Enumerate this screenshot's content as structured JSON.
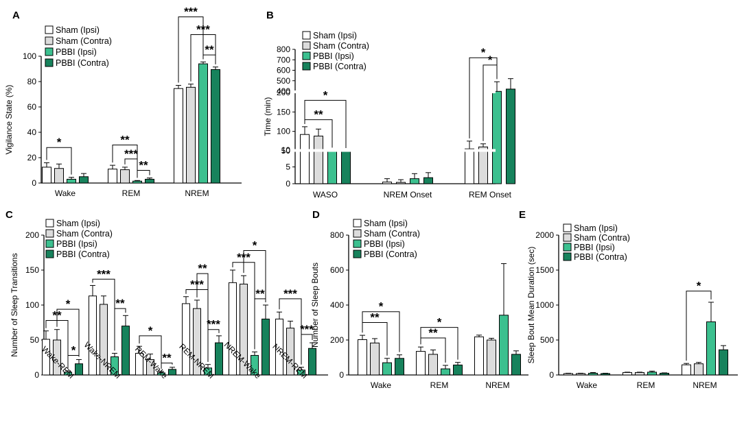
{
  "figure": {
    "series_names": [
      "Sham (Ipsi)",
      "Sham (Contra)",
      "PBBI (Ipsi)",
      "PBBI (Contra)"
    ],
    "series_colors": [
      "#ffffff",
      "#dcdcdc",
      "#3cc08f",
      "#17825c"
    ]
  },
  "chart_data": [
    {
      "id": "A",
      "type": "bar",
      "ylabel": "Vigilance State (%)",
      "ylim": [
        0,
        100
      ],
      "yticks": [
        0,
        20,
        40,
        60,
        80,
        100
      ],
      "categories": [
        "Wake",
        "REM",
        "NREM"
      ],
      "series": [
        {
          "name": "Sham (Ipsi)",
          "values": [
            12.5,
            11,
            74.5
          ],
          "err": [
            3.5,
            3,
            2.5
          ]
        },
        {
          "name": "Sham (Contra)",
          "values": [
            11.5,
            10.5,
            75.5
          ],
          "err": [
            3.5,
            2,
            2.5
          ]
        },
        {
          "name": "PBBI (Ipsi)",
          "values": [
            3,
            1.5,
            94
          ],
          "err": [
            1.5,
            0.5,
            1.5
          ]
        },
        {
          "name": "PBBI (Contra)",
          "values": [
            5,
            3,
            89.5
          ],
          "err": [
            2.5,
            1,
            2
          ]
        }
      ],
      "brackets": [
        {
          "cat": 0,
          "from": 0,
          "to": 2,
          "label": "*",
          "y": 28
        },
        {
          "cat": 1,
          "from": 0,
          "to": 2,
          "label": "**",
          "y": 30
        },
        {
          "cat": 1,
          "from": 1,
          "to": 2,
          "label": "***",
          "y": 19
        },
        {
          "cat": 1,
          "from": 2,
          "to": 3,
          "label": "**",
          "y": 10
        },
        {
          "cat": 2,
          "from": 0,
          "to": 2,
          "label": "***",
          "y": 131
        },
        {
          "cat": 2,
          "from": 1,
          "to": 3,
          "label": "***",
          "y": 117
        },
        {
          "cat": 2,
          "from": 2,
          "to": 3,
          "label": "**",
          "y": 101
        }
      ]
    },
    {
      "id": "B",
      "type": "bar",
      "ylabel": "Time (min)",
      "ytick_labels": [
        "0",
        "5",
        "10",
        "50",
        "100",
        "150",
        "200",
        "400",
        "500",
        "600",
        "700",
        "800"
      ],
      "categories": [
        "WASO",
        "NREM Onset",
        "REM Onset"
      ],
      "series": [
        {
          "name": "Sham (Ipsi)",
          "values": [
            92,
            0.5,
            55
          ],
          "err": [
            20,
            1,
            20
          ]
        },
        {
          "name": "Sham (Contra)",
          "values": [
            88,
            0.4,
            60
          ],
          "err": [
            18,
            0.8,
            8
          ]
        },
        {
          "name": "PBBI (Ipsi)",
          "values": [
            20,
            1.5,
            370
          ],
          "err": [
            5,
            1.5,
            120
          ]
        },
        {
          "name": "PBBI (Contra)",
          "values": [
            37,
            1.8,
            420
          ],
          "err": [
            12,
            1.5,
            100
          ]
        }
      ],
      "brackets": [
        {
          "cat": 0,
          "from": 0,
          "to": 2,
          "label": "**",
          "y": 130
        },
        {
          "cat": 0,
          "from": 0,
          "to": 3,
          "label": "*",
          "y": 180
        },
        {
          "cat": 2,
          "from": 0,
          "to": 2,
          "label": "*",
          "y": 720
        },
        {
          "cat": 2,
          "from": 1,
          "to": 2,
          "label": "*",
          "y": 650
        }
      ]
    },
    {
      "id": "C",
      "type": "bar",
      "ylabel": "Number of Sleep Transitions",
      "ylim": [
        0,
        200
      ],
      "yticks": [
        0,
        50,
        100,
        150,
        200
      ],
      "categories": [
        "Wake-REM",
        "Wake-NREM",
        "REM-Wake",
        "REM-NREM",
        "NREM-Wake",
        "NREM-REM"
      ],
      "series": [
        {
          "name": "Sham (Ipsi)",
          "values": [
            51,
            113,
            31,
            102,
            132,
            80
          ],
          "err": [
            12,
            15,
            10,
            10,
            18,
            10
          ]
        },
        {
          "name": "Sham (Contra)",
          "values": [
            50,
            101,
            22,
            95,
            130,
            67
          ],
          "err": [
            15,
            12,
            8,
            12,
            12,
            10
          ]
        },
        {
          "name": "PBBI (Ipsi)",
          "values": [
            4,
            26,
            3,
            10,
            28,
            7
          ],
          "err": [
            2,
            5,
            2,
            5,
            5,
            4
          ]
        },
        {
          "name": "PBBI (Contra)",
          "values": [
            16,
            70,
            8,
            46,
            80,
            38
          ],
          "err": [
            6,
            15,
            3,
            10,
            20,
            8
          ]
        }
      ],
      "brackets": [
        {
          "cat": 0,
          "from": 0,
          "to": 2,
          "label": "**",
          "y": 78
        },
        {
          "cat": 0,
          "from": 1,
          "to": 3,
          "label": "*",
          "y": 94
        },
        {
          "cat": 0,
          "from": 2,
          "to": 3,
          "label": "*",
          "y": 28
        },
        {
          "cat": 1,
          "from": 0,
          "to": 2,
          "label": "***",
          "y": 137
        },
        {
          "cat": 1,
          "from": 2,
          "to": 3,
          "label": "**",
          "y": 95
        },
        {
          "cat": 2,
          "from": 0,
          "to": 2,
          "label": "*",
          "y": 56
        },
        {
          "cat": 2,
          "from": 2,
          "to": 3,
          "label": "**",
          "y": 17
        },
        {
          "cat": 3,
          "from": 0,
          "to": 2,
          "label": "***",
          "y": 122
        },
        {
          "cat": 3,
          "from": 1,
          "to": 2,
          "label": "**",
          "y": 145
        },
        {
          "cat": 3,
          "from": 2,
          "to": 3,
          "label": "***",
          "y": 65
        },
        {
          "cat": 4,
          "from": 0,
          "to": 2,
          "label": "***",
          "y": 161
        },
        {
          "cat": 4,
          "from": 1,
          "to": 3,
          "label": "*",
          "y": 178
        },
        {
          "cat": 4,
          "from": 2,
          "to": 3,
          "label": "**",
          "y": 109
        },
        {
          "cat": 5,
          "from": 0,
          "to": 2,
          "label": "***",
          "y": 109
        },
        {
          "cat": 5,
          "from": 2,
          "to": 3,
          "label": "***",
          "y": 58
        }
      ]
    },
    {
      "id": "D",
      "type": "bar",
      "ylabel": "Number of Sleep Bouts",
      "ylim": [
        0,
        800
      ],
      "yticks": [
        0,
        200,
        400,
        600,
        800
      ],
      "categories": [
        "Wake",
        "REM",
        "NREM"
      ],
      "series": [
        {
          "name": "Sham (Ipsi)",
          "values": [
            202,
            135,
            218
          ],
          "err": [
            25,
            25,
            10
          ]
        },
        {
          "name": "Sham (Contra)",
          "values": [
            183,
            118,
            200
          ],
          "err": [
            25,
            25,
            10
          ]
        },
        {
          "name": "PBBI (Ipsi)",
          "values": [
            70,
            35,
            342
          ],
          "err": [
            25,
            20,
            295
          ]
        },
        {
          "name": "PBBI (Contra)",
          "values": [
            95,
            57,
            118
          ],
          "err": [
            20,
            15,
            20
          ]
        }
      ],
      "brackets": [
        {
          "cat": 0,
          "from": 0,
          "to": 2,
          "label": "**",
          "y": 300
        },
        {
          "cat": 0,
          "from": 0,
          "to": 3,
          "label": "*",
          "y": 362
        },
        {
          "cat": 1,
          "from": 0,
          "to": 2,
          "label": "**",
          "y": 212
        },
        {
          "cat": 1,
          "from": 0,
          "to": 3,
          "label": "*",
          "y": 272
        }
      ]
    },
    {
      "id": "E",
      "type": "bar",
      "ylabel": "Sleep Bout Mean Duration (sec)",
      "ylim": [
        0,
        2000
      ],
      "yticks": [
        0,
        500,
        1000,
        1500,
        2000
      ],
      "categories": [
        "Wake",
        "REM",
        "NREM"
      ],
      "series": [
        {
          "name": "Sham (Ipsi)",
          "values": [
            20,
            35,
            145
          ],
          "err": [
            5,
            5,
            20
          ]
        },
        {
          "name": "Sham (Contra)",
          "values": [
            20,
            35,
            160
          ],
          "err": [
            5,
            5,
            20
          ]
        },
        {
          "name": "PBBI (Ipsi)",
          "values": [
            25,
            40,
            760
          ],
          "err": [
            10,
            15,
            280
          ]
        },
        {
          "name": "PBBI (Contra)",
          "values": [
            20,
            25,
            360
          ],
          "err": [
            5,
            5,
            60
          ]
        }
      ],
      "brackets": [
        {
          "cat": 2,
          "from": 0,
          "to": 2,
          "label": "*",
          "y": 1200
        }
      ]
    }
  ]
}
